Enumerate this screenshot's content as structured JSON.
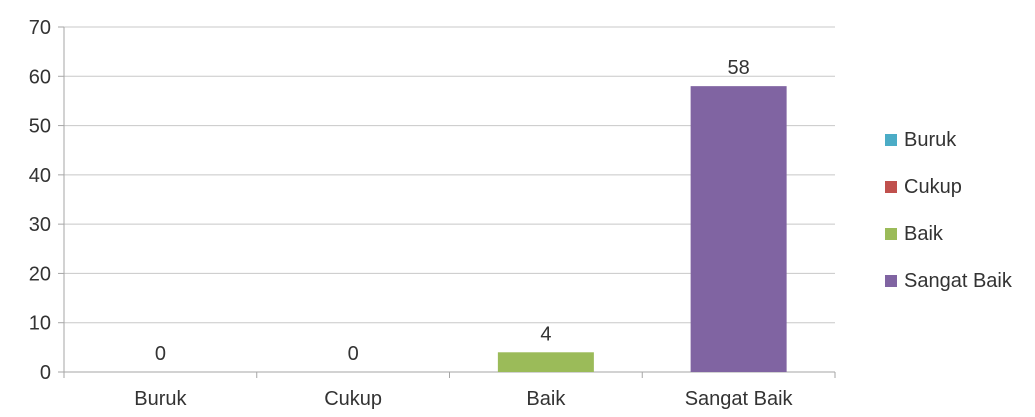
{
  "chart_data": {
    "type": "bar",
    "categories": [
      "Buruk",
      "Cukup",
      "Baik",
      "Sangat Baik"
    ],
    "values": [
      0,
      0,
      4,
      58
    ],
    "data_labels": [
      "0",
      "0",
      "4",
      "58"
    ],
    "colors": [
      "#4bacc6",
      "#c0504d",
      "#9bbb59",
      "#8064a2"
    ],
    "ylim": [
      0,
      70
    ],
    "yticks": [
      0,
      10,
      20,
      30,
      40,
      50,
      60,
      70
    ],
    "grid": true,
    "legend": {
      "placement": "right",
      "entries": [
        {
          "label": "Buruk",
          "color": "#4bacc6"
        },
        {
          "label": "Cukup",
          "color": "#c0504d"
        },
        {
          "label": "Baik",
          "color": "#9bbb59"
        },
        {
          "label": "Sangat Baik",
          "color": "#8064a2"
        }
      ]
    }
  }
}
